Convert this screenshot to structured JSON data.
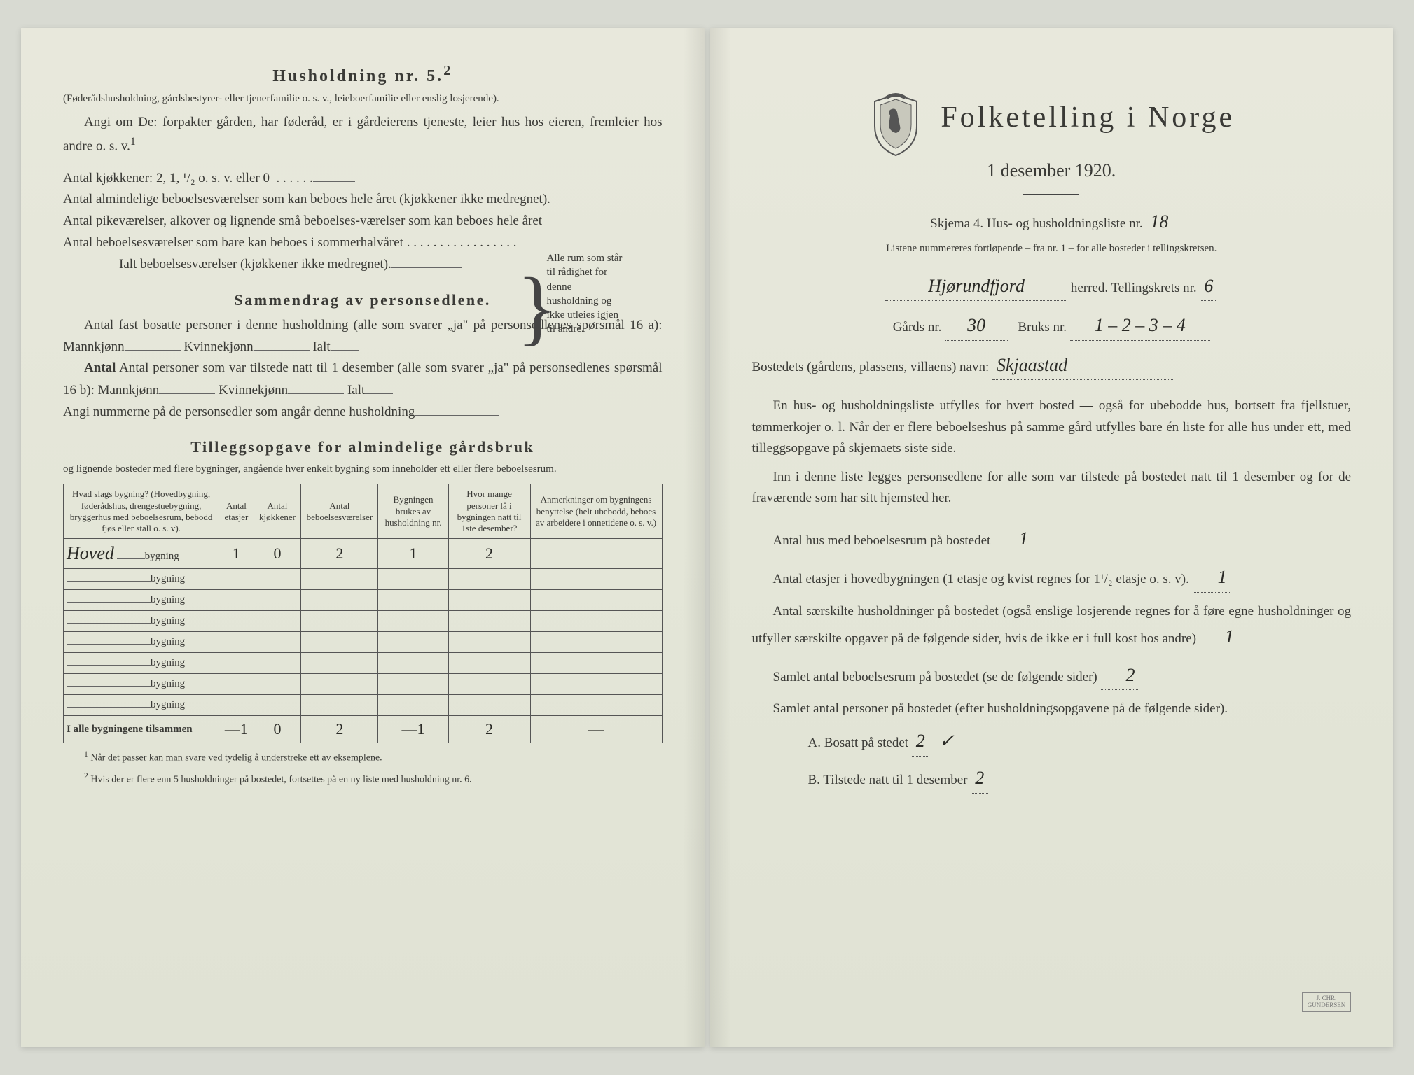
{
  "left": {
    "heading": "Husholdning nr. 5.",
    "heading_sup": "2",
    "sub1": "(Føderådshusholdning, gårdsbestyrer- eller tjenerfamilie o. s. v., leieboerfamilie eller enslig losjerende).",
    "sub2a": "Angi om De:  forpakter gården, har føderåd, er i gårdeierens tjeneste, leier hus hos eieren, fremleier hos andre o. s. v.",
    "sub2_sup": "1",
    "kitchens_label": "Antal kjøkkener: 2, 1, ¹/₂ o. s. v. eller 0",
    "rooms1": "Antal almindelige beboelsesværelser som kan beboes hele året (kjøkkener ikke medregnet).",
    "rooms2": "Antal pikeværelser, alkover og lignende små beboelses-værelser som kan beboes hele året",
    "rooms3": "Antal beboelsesværelser som bare kan beboes i sommerhalvåret",
    "rooms_total": "Ialt beboelsesværelser  (kjøkkener ikke medregnet).",
    "brace_note": "Alle rum som står til rådighet for denne husholdning og ikke utleies igjen til andre.",
    "summary_heading": "Sammendrag av personsedlene.",
    "summary1": "Antal fast bosatte personer i denne husholdning (alle som svarer „ja\" på personsedlenes spørsmål 16 a): Mannkjønn",
    "kvinne": "Kvinnekjønn",
    "ialt": "Ialt",
    "summary2": "Antal personer som var tilstede natt til 1 desember (alle som svarer „ja\" på personsedlenes spørsmål 16 b): Mannkjønn",
    "summary3": "Angi nummerne på de personsedler som angår denne husholdning",
    "tillegg_heading": "Tilleggsopgave for almindelige gårdsbruk",
    "tillegg_sub": "og lignende bosteder med flere bygninger, angående hver enkelt bygning som inneholder ett eller flere beboelsesrum.",
    "table": {
      "headers": [
        "Hvad slags bygning?\n(Hovedbygning, føderådshus, drengestuebygning, bryggerhus med beboelsesrum, bebodd fjøs eller stall o. s. v).",
        "Antal etasjer",
        "Antal kjøkkener",
        "Antal beboelsesværelser",
        "Bygningen brukes av husholdning nr.",
        "Hvor mange personer lå i bygningen natt til 1ste desember?",
        "Anmerkninger om bygningens benyttelse (helt ubebodd, beboes av arbeidere i onnetidene o. s. v.)"
      ],
      "row_suffix": "bygning",
      "hand_row1_label": "Hoved",
      "rows": [
        [
          "1",
          "0",
          "2",
          "1",
          "2",
          ""
        ],
        [
          "",
          "",
          "",
          "",
          "",
          ""
        ],
        [
          "",
          "",
          "",
          "",
          "",
          ""
        ],
        [
          "",
          "",
          "",
          "",
          "",
          ""
        ],
        [
          "",
          "",
          "",
          "",
          "",
          ""
        ],
        [
          "",
          "",
          "",
          "",
          "",
          ""
        ],
        [
          "",
          "",
          "",
          "",
          "",
          ""
        ],
        [
          "",
          "",
          "",
          "",
          "",
          ""
        ]
      ],
      "total_label": "I alle bygningene tilsammen",
      "totals": [
        "—1",
        "0",
        "2",
        "—1",
        "2",
        "—"
      ]
    },
    "foot1": "Når det passer kan man svare ved tydelig å understreke ett av eksemplene.",
    "foot2": "Hvis der er flere enn 5 husholdninger på bostedet, fortsettes på en ny liste med husholdning nr. 6."
  },
  "right": {
    "title": "Folketelling i Norge",
    "subtitle": "1 desember 1920.",
    "skjema": "Skjema 4.  Hus- og husholdningsliste nr.",
    "skjema_val": "18",
    "listene": "Listene nummereres fortløpende – fra nr. 1 – for alle bosteder i tellingskretsen.",
    "herred_val": "Hjørundfjord",
    "herred_lbl": "herred.  Tellingskrets nr.",
    "krets_val": "6",
    "gards_lbl": "Gårds nr.",
    "gards_val": "30",
    "bruks_lbl": "Bruks nr.",
    "bruks_val": "1 – 2 – 3 – 4",
    "bosted_lbl": "Bostedets (gårdens, plassens, villaens) navn:",
    "bosted_val": "Skjaastad",
    "para1": "En hus- og husholdningsliste utfylles for hvert bosted — også for ubebodde hus, bortsett fra fjellstuer, tømmerkojer o. l.  Når der er flere beboelseshus på samme gård utfylles bare én liste for alle hus under ett, med tilleggsopgave på skjemaets siste side.",
    "para2": "Inn i denne liste legges personsedlene for alle som var tilstede på bostedet natt til 1 desember og for de fraværende som har sitt hjemsted her.",
    "q1": "Antal hus med beboelsesrum på bostedet",
    "q1_val": "1",
    "q2a": "Antal etasjer i hovedbygningen (1 etasje og kvist regnes for 1¹/₂ etasje o. s. v).",
    "q2_val": "1",
    "q3": "Antal særskilte husholdninger på bostedet (også enslige losjerende regnes for å føre egne husholdninger og utfyller særskilte opgaver på de følgende sider, hvis de ikke er i full kost hos andre)",
    "q3_val": "1",
    "q4": "Samlet antal beboelsesrum på bostedet (se de følgende sider)",
    "q4_val": "2",
    "q5": "Samlet antal personer på bostedet (efter husholdningsopgavene på de følgende sider).",
    "qA": "A.  Bosatt på stedet",
    "qA_val": "2",
    "qA_check": "✓",
    "qB": "B.  Tilstede natt til 1 desember",
    "qB_val": "2",
    "colors": {
      "paper": "#e4e6d8",
      "ink": "#3a3a36",
      "hand": "#2a2a26"
    }
  }
}
